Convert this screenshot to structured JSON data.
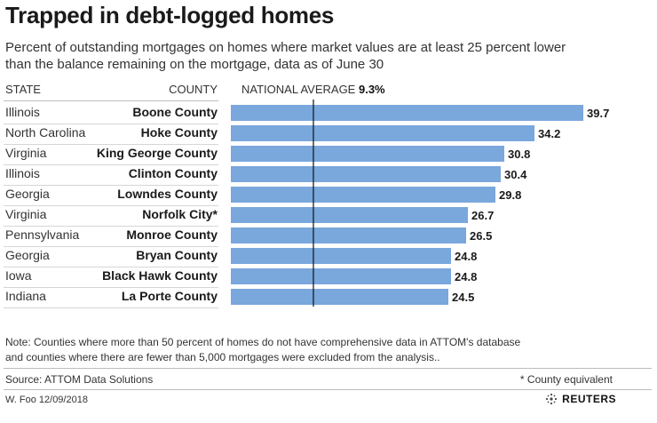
{
  "title": "Trapped in debt-logged homes",
  "subtitle_lines": [
    "Percent of outstanding mortgages on homes where market values are at least 25 percent lower",
    "than the balance remaining on the mortgage, data as of June 30"
  ],
  "headers": {
    "state": "STATE",
    "county": "COUNTY",
    "national_average_label": "NATIONAL AVERAGE",
    "national_average_value": "9.3%"
  },
  "rows": [
    {
      "state": "Illinois",
      "county": "Boone County"
    },
    {
      "state": "North Carolina",
      "county": "Hoke County"
    },
    {
      "state": "Virginia",
      "county": "King George County"
    },
    {
      "state": "Illinois",
      "county": "Clinton County"
    },
    {
      "state": "Georgia",
      "county": "Lowndes County"
    },
    {
      "state": "Virginia",
      "county": "Norfolk City*"
    },
    {
      "state": "Pennsylvania",
      "county": "Monroe County"
    },
    {
      "state": "Georgia",
      "county": "Bryan County"
    },
    {
      "state": "Iowa",
      "county": "Black Hawk County"
    },
    {
      "state": "Indiana",
      "county": "La Porte County"
    }
  ],
  "chart_data": {
    "type": "bar",
    "orientation": "horizontal",
    "title": "Trapped in debt-logged homes",
    "categories": [
      "Boone County",
      "Hoke County",
      "King George County",
      "Clinton County",
      "Lowndes County",
      "Norfolk City*",
      "Monroe County",
      "Bryan County",
      "Black Hawk County",
      "La Porte County"
    ],
    "values": [
      39.7,
      34.2,
      30.8,
      30.4,
      29.8,
      26.7,
      26.5,
      24.8,
      24.8,
      24.5
    ],
    "value_labels": [
      "39.7",
      "34.2",
      "30.8",
      "30.4",
      "29.8",
      "26.7",
      "26.5",
      "24.8",
      "24.8",
      "24.5"
    ],
    "reference_line": {
      "label": "NATIONAL AVERAGE",
      "value": 9.3
    },
    "xlim": [
      0,
      40
    ],
    "bar_color": "#7aa7dc",
    "xlabel": "",
    "ylabel": ""
  },
  "note_lines": [
    "Note: Counties where more than 50 percent of homes do not have comprehensive data in ATTOM's database",
    "and counties where there are fewer than 5,000 mortgages were excluded from the analysis.."
  ],
  "source": "Source: ATTOM Data Solutions",
  "county_equivalent_note": "* County equivalent",
  "credit": "W. Foo 12/09/2018",
  "logo_text": "REUTERS"
}
